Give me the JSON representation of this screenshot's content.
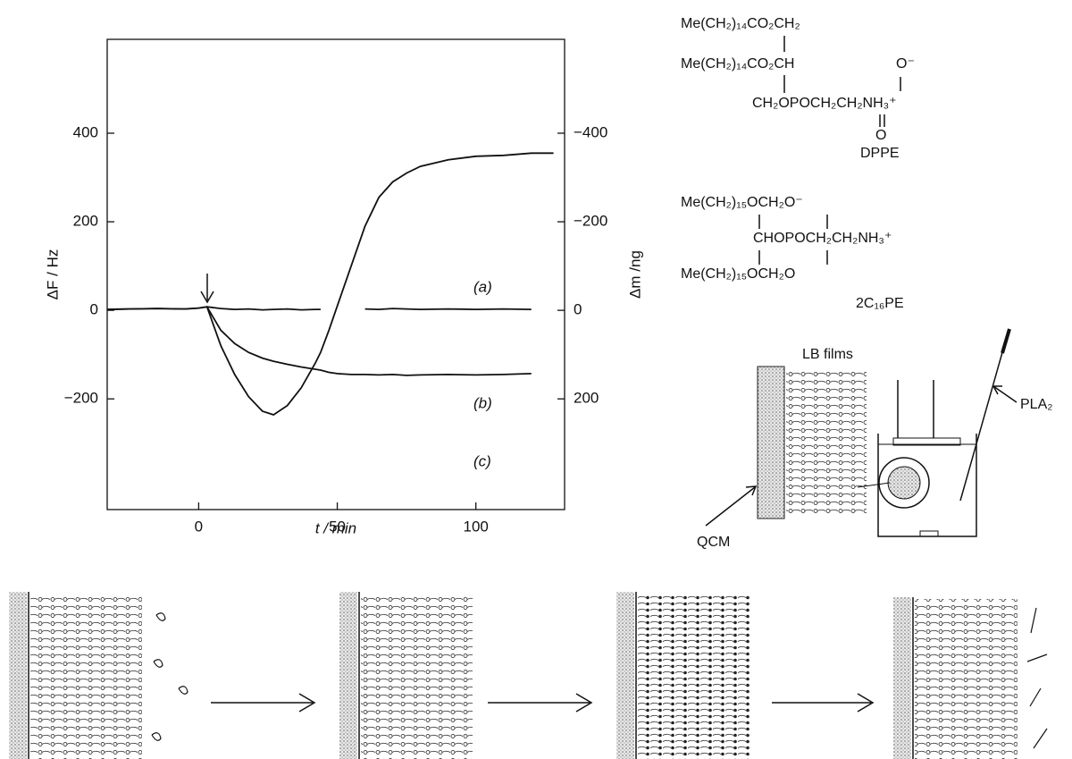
{
  "chart_data": {
    "type": "line",
    "x_label": "t / min",
    "y_label": "ΔF / Hz",
    "y2_label": "Δm /ng",
    "x": [
      -33,
      -25,
      -15,
      -5,
      0,
      3,
      8,
      13,
      18,
      23,
      27,
      32,
      37,
      42,
      44,
      47,
      50,
      55,
      60,
      65,
      70,
      75,
      80,
      90,
      100,
      110,
      120,
      128
    ],
    "series": [
      {
        "name": "(a)",
        "color": "#111111",
        "values": [
          2,
          3,
          4,
          3,
          5,
          8,
          -80,
          -145,
          -195,
          -228,
          -236,
          -215,
          -175,
          -120,
          -95,
          -45,
          10,
          100,
          190,
          255,
          290,
          310,
          325,
          340,
          348,
          350,
          355,
          355
        ]
      },
      {
        "name": "(b)",
        "color": "#111111",
        "values": [
          2,
          3,
          4,
          3,
          5,
          8,
          4,
          2,
          3,
          1,
          2,
          3,
          1,
          2,
          2,
          null,
          null,
          null,
          3,
          2,
          4,
          3,
          2,
          3,
          2,
          3,
          2,
          null
        ]
      },
      {
        "name": "(c)",
        "color": "#111111",
        "values": [
          null,
          null,
          null,
          null,
          null,
          8,
          -45,
          -75,
          -95,
          -108,
          -115,
          -122,
          -128,
          -133,
          -135,
          -140,
          -143,
          -145,
          -145,
          -146,
          -145,
          -147,
          -146,
          -145,
          -146,
          -145,
          -143,
          null
        ]
      }
    ],
    "xlim": [
      -33,
      132
    ],
    "ylim": [
      -450,
      612
    ],
    "y2lim": [
      450,
      -612
    ],
    "xticks": [
      0,
      50,
      100
    ],
    "yticks": [
      {
        "value": -200,
        "label": "−200"
      },
      0,
      200,
      400
    ],
    "y2ticks": [
      200,
      0,
      {
        "value": -200,
        "label": "−200"
      },
      {
        "value": -400,
        "label": "−400"
      }
    ]
  },
  "structures": [
    {
      "name": "DPPE",
      "lines": [
        "Me(CH₂)₁₄CO₂CH₂",
        "Me(CH₂)₁₄CO₂CH",
        "O⁻",
        "CH₂OPOCH₂CH₂NH₃⁺",
        "O"
      ]
    },
    {
      "name": "2C₁₆PE",
      "lines": [
        "Me(CH₂)₁₅OCH₂O⁻",
        "CHOPOCH₂CH₂NH₃⁺",
        "Me(CH₂)₁₅OCH₂O"
      ]
    }
  ],
  "apparatus": {
    "labels": [
      "LB films",
      "PLA₂",
      "QCM"
    ]
  }
}
